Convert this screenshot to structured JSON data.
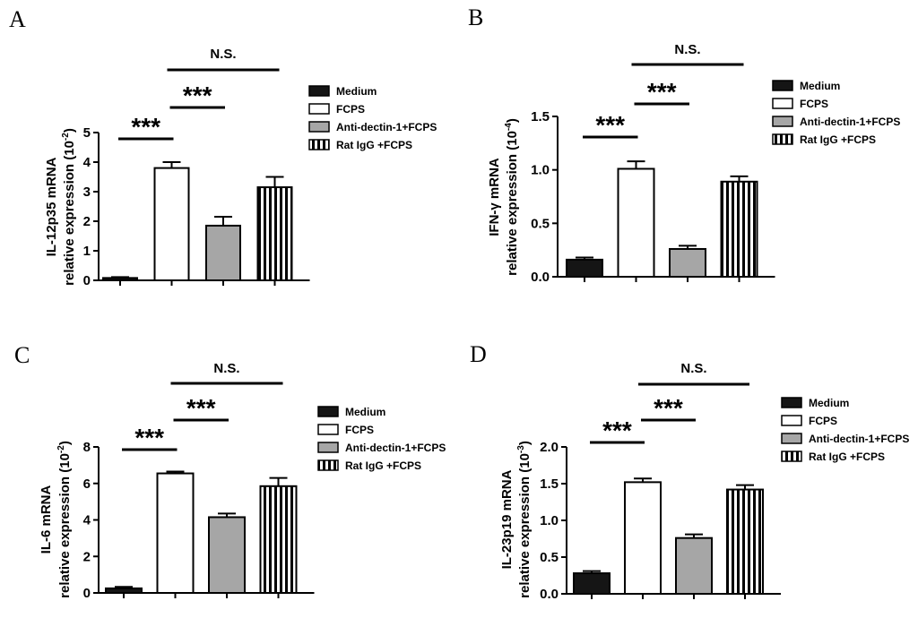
{
  "colors": {
    "medium": "#151515",
    "fcps": "#ffffff",
    "anti": "#a6a6a6",
    "ratigg_stripe": "#000000",
    "axis": "#000000"
  },
  "legend_items": [
    {
      "label": "Medium",
      "fill": "medium"
    },
    {
      "label": "FCPS",
      "fill": "fcps"
    },
    {
      "label": "Anti-dectin-1+FCPS",
      "fill": "anti"
    },
    {
      "label": "Rat IgG +FCPS",
      "fill": "stripes"
    }
  ],
  "chart_data": [
    {
      "panel": "A",
      "type": "bar",
      "ylabel_line1": "IL-12p35 mRNA",
      "ylabel_line2_pre": "relative expression (10",
      "ylabel_exp": "-2",
      "ylabel_line2_post": ")",
      "categories": [
        "Medium",
        "FCPS",
        "Anti-dectin-1+FCPS",
        "Rat IgG +FCPS"
      ],
      "values": [
        0.08,
        3.8,
        1.85,
        3.15
      ],
      "errors": [
        0.03,
        0.2,
        0.3,
        0.35
      ],
      "ylim": [
        0,
        5
      ],
      "ticks": [
        0,
        1,
        2,
        3,
        4,
        5
      ],
      "tick_labels": [
        "0",
        "1",
        "2",
        "3",
        "4",
        "5"
      ],
      "significance": [
        {
          "from": 0,
          "to": 1,
          "label": "***"
        },
        {
          "from": 1,
          "to": 2,
          "label": "***"
        },
        {
          "from": 1,
          "to": 3,
          "label": "N.S."
        }
      ]
    },
    {
      "panel": "B",
      "type": "bar",
      "ylabel_line1": "IFN-γ mRNA",
      "ylabel_line2_pre": "relative expression (10",
      "ylabel_exp": "-4",
      "ylabel_line2_post": ")",
      "categories": [
        "Medium",
        "FCPS",
        "Anti-dectin-1+FCPS",
        "Rat IgG +FCPS"
      ],
      "values": [
        0.16,
        1.01,
        0.26,
        0.89
      ],
      "errors": [
        0.02,
        0.07,
        0.03,
        0.05
      ],
      "ylim": [
        0,
        1.5
      ],
      "ticks": [
        0,
        0.5,
        1.0,
        1.5
      ],
      "tick_labels": [
        "0.0",
        "0.5",
        "1.0",
        "1.5"
      ],
      "significance": [
        {
          "from": 0,
          "to": 1,
          "label": "***"
        },
        {
          "from": 1,
          "to": 2,
          "label": "***"
        },
        {
          "from": 1,
          "to": 3,
          "label": "N.S."
        }
      ]
    },
    {
      "panel": "C",
      "type": "bar",
      "ylabel_line1": "IL-6 mRNA",
      "ylabel_line2_pre": "relative expression (10",
      "ylabel_exp": "-2",
      "ylabel_line2_post": ")",
      "categories": [
        "Medium",
        "FCPS",
        "Anti-dectin-1+FCPS",
        "Rat IgG +FCPS"
      ],
      "values": [
        0.25,
        6.55,
        4.15,
        5.85
      ],
      "errors": [
        0.08,
        0.1,
        0.2,
        0.45
      ],
      "ylim": [
        0,
        8
      ],
      "ticks": [
        0,
        2,
        4,
        6,
        8
      ],
      "tick_labels": [
        "0",
        "2",
        "4",
        "6",
        "8"
      ],
      "significance": [
        {
          "from": 0,
          "to": 1,
          "label": "***"
        },
        {
          "from": 1,
          "to": 2,
          "label": "***"
        },
        {
          "from": 1,
          "to": 3,
          "label": "N.S."
        }
      ]
    },
    {
      "panel": "D",
      "type": "bar",
      "ylabel_line1": "IL-23p19 mRNA",
      "ylabel_line2_pre": "relative expression (10",
      "ylabel_exp": "-3",
      "ylabel_line2_post": ")",
      "categories": [
        "Medium",
        "FCPS",
        "Anti-dectin-1+FCPS",
        "Rat IgG +FCPS"
      ],
      "values": [
        0.28,
        1.52,
        0.76,
        1.42
      ],
      "errors": [
        0.03,
        0.05,
        0.05,
        0.06
      ],
      "ylim": [
        0,
        2.0
      ],
      "ticks": [
        0,
        0.5,
        1.0,
        1.5,
        2.0
      ],
      "tick_labels": [
        "0.0",
        "0.5",
        "1.0",
        "1.5",
        "2.0"
      ],
      "significance": [
        {
          "from": 0,
          "to": 1,
          "label": "***"
        },
        {
          "from": 1,
          "to": 2,
          "label": "***"
        },
        {
          "from": 1,
          "to": 3,
          "label": "N.S."
        }
      ]
    }
  ]
}
